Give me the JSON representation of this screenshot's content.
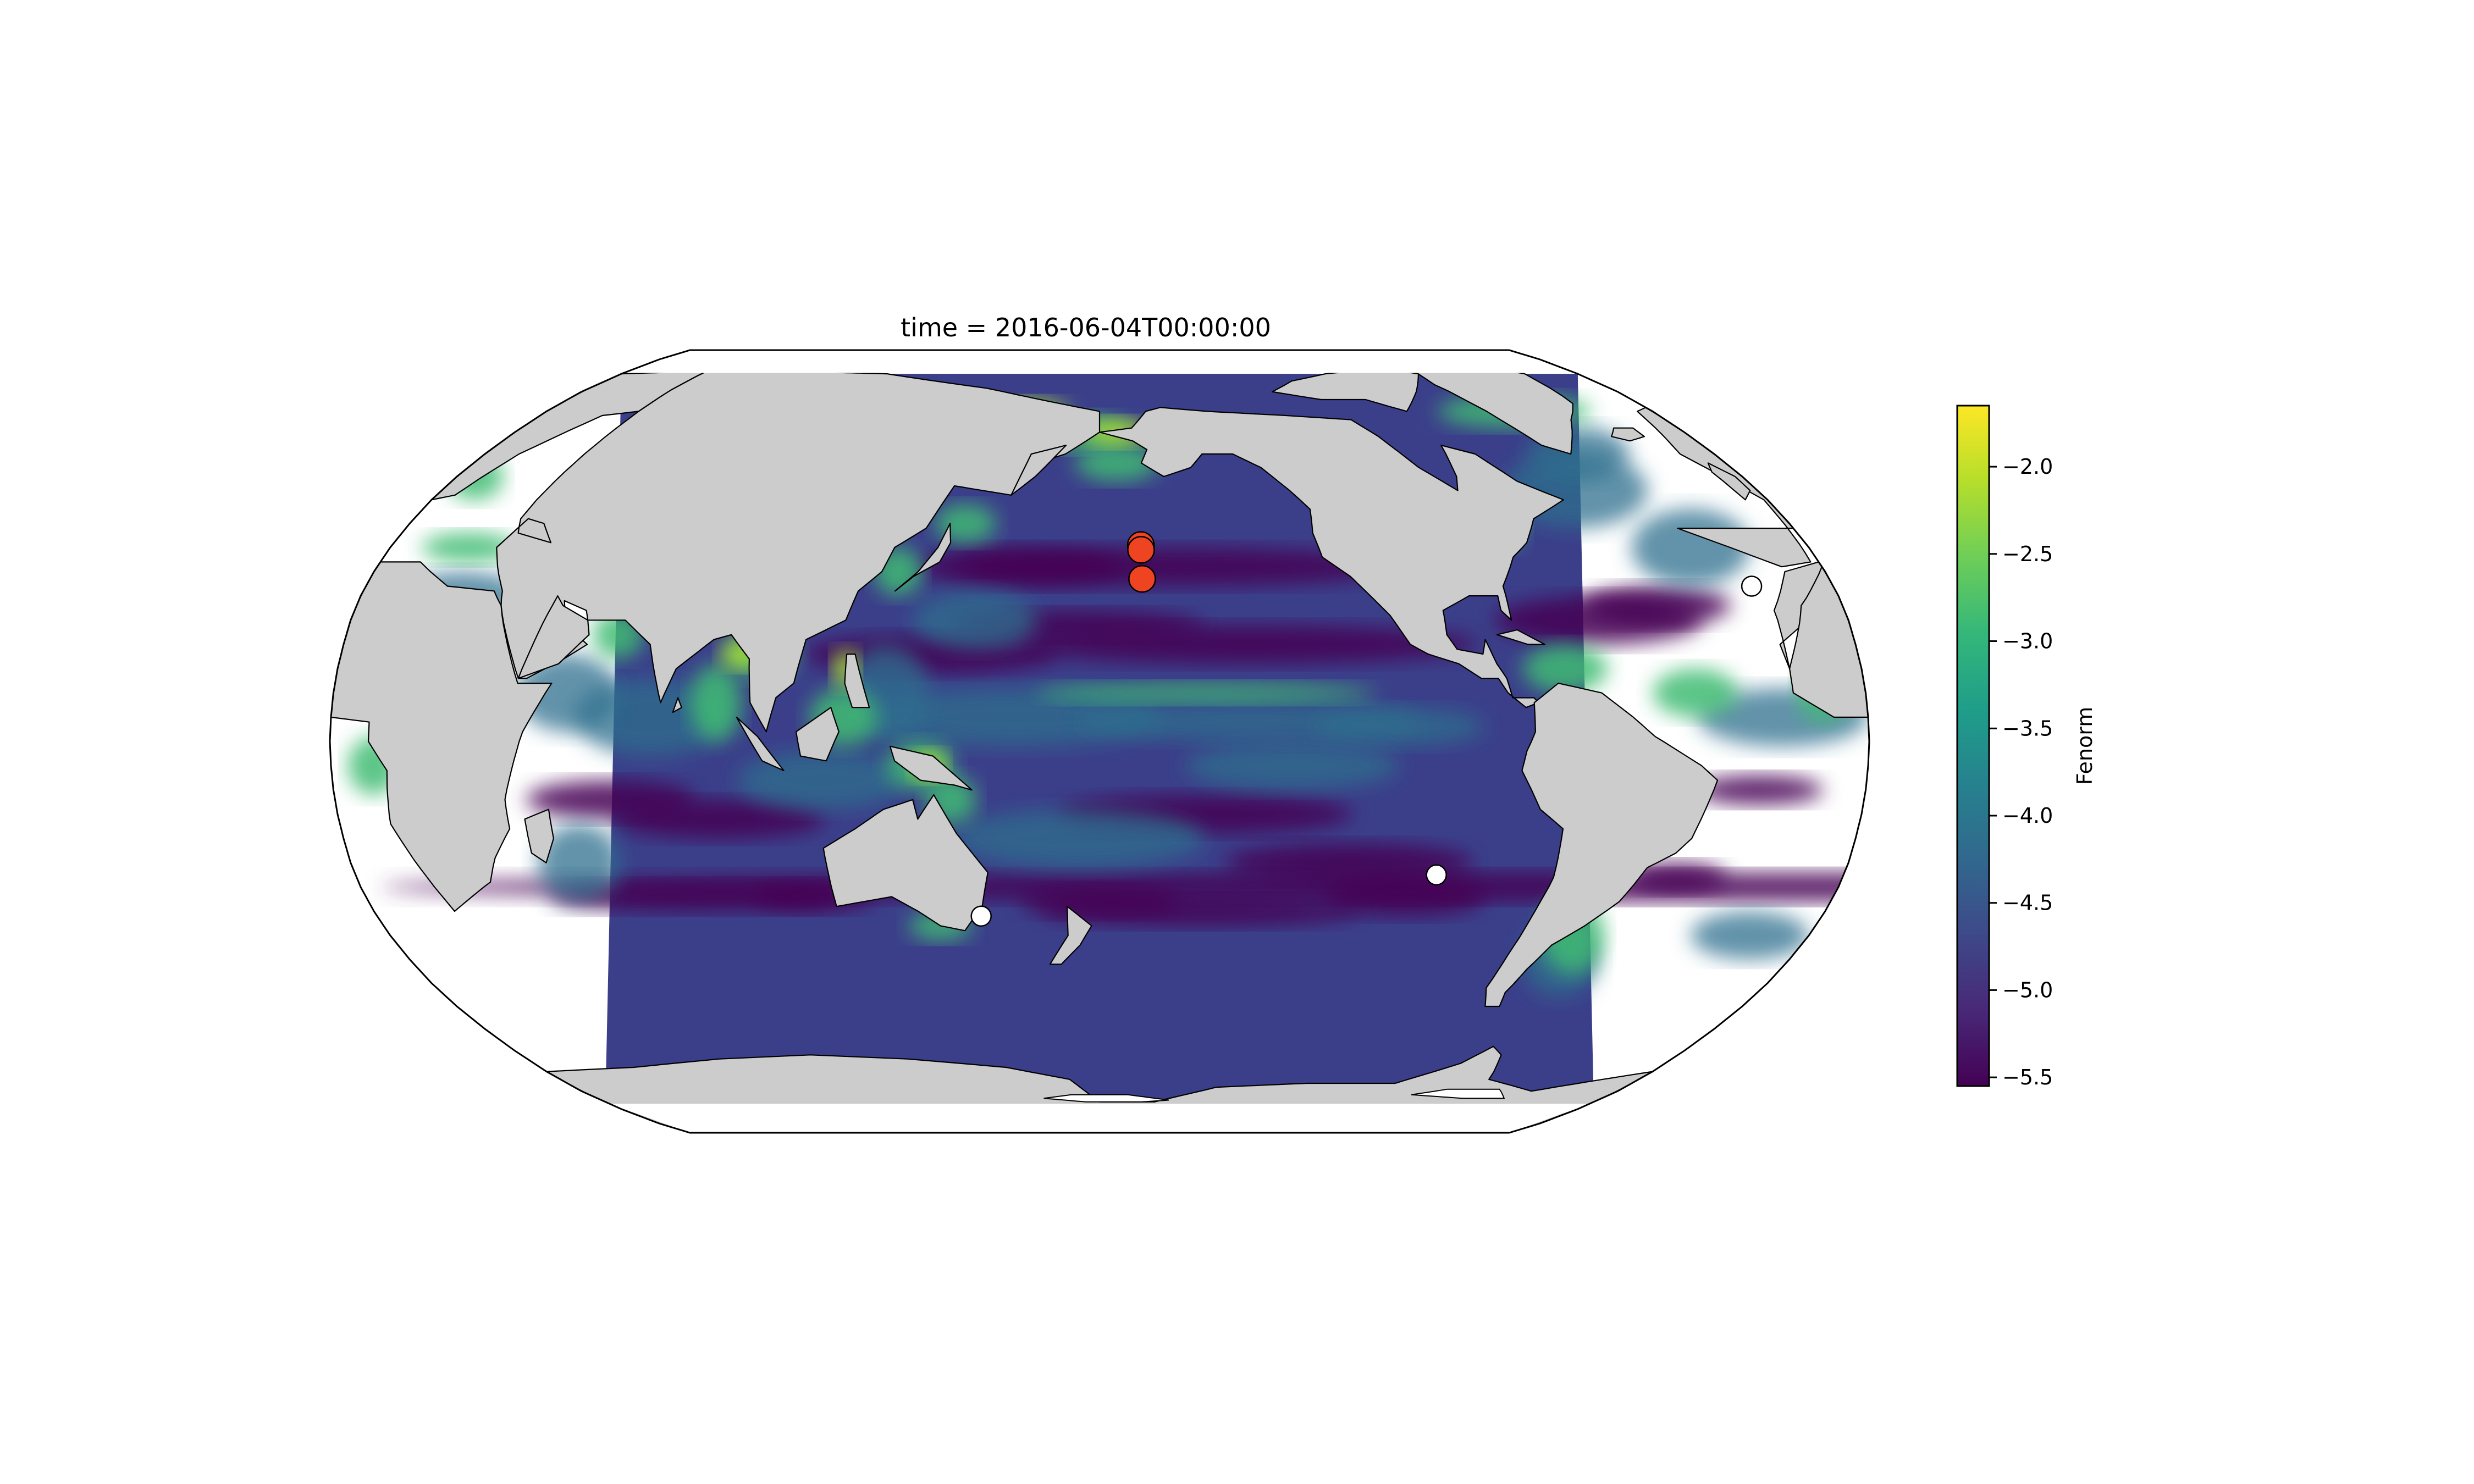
{
  "title": "time = 2016-06-04T00:00:00",
  "colorbar": {
    "label": "Fenorm",
    "min": -5.55,
    "max": -1.65,
    "ticks": [
      -2.0,
      -2.5,
      -3.0,
      -3.5,
      -4.0,
      -4.5,
      -5.0,
      -5.5
    ],
    "tick_labels": [
      "−2.0",
      "−2.5",
      "−3.0",
      "−3.5",
      "−4.0",
      "−4.5",
      "−5.0",
      "−5.5"
    ],
    "colormap": "viridis",
    "stops": [
      "#440154",
      "#482878",
      "#3e4989",
      "#31688e",
      "#26828e",
      "#1f9e89",
      "#35b779",
      "#6ece58",
      "#b5de2b",
      "#fde725"
    ]
  },
  "colors": {
    "land": "#cccccc",
    "ocean_deep": "#3b3f8a",
    "ocean_low": "#440154",
    "ocean_mid": "#2b6f8e",
    "ocean_high": "#3fbc73",
    "coast_high": "#a8db34",
    "red_marker": "#ee4422",
    "white_marker": "#ffffff"
  },
  "map": {
    "projection": "robinson",
    "red_markers": [
      {
        "lon": -169.5,
        "lat": 40.5
      },
      {
        "lon": -169.5,
        "lat": 39.5
      },
      {
        "lon": -169.5,
        "lat": 33.5
      }
    ],
    "white_markers": [
      {
        "lon": 150.5,
        "lat": -36.0
      },
      {
        "lon": -98.5,
        "lat": -27.5
      },
      {
        "lon": -20.0,
        "lat": 32.0
      }
    ]
  }
}
